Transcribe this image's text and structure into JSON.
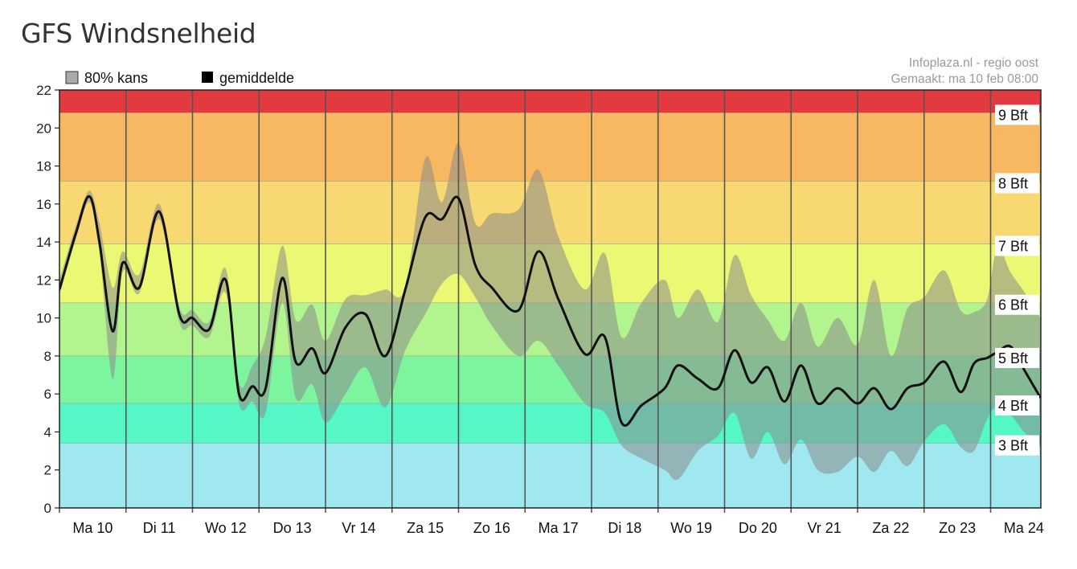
{
  "page": {
    "title": "GFS Windsnelheid",
    "source_line1": "Infoplaza.nl - regio oost",
    "source_line2": "Gemaakt: ma 10 feb 08:00"
  },
  "colors": {
    "band_red": "#e23a3e",
    "band_orange": "#f8b761",
    "band_yellow_orange": "#f8d871",
    "band_yellow": "#eaf873",
    "band_light_green": "#b2f58e",
    "band_green": "#7df59f",
    "band_teal": "#55f7c7",
    "band_cyan": "#9fe8f0",
    "range_fill": "#8a8a8a",
    "mean_line": "#111111",
    "grid": "#555555"
  },
  "chart_data": {
    "type": "area",
    "ylim": [
      0,
      22
    ],
    "yticks": [
      0,
      2,
      4,
      6,
      8,
      10,
      12,
      14,
      16,
      18,
      20,
      22
    ],
    "xlim": [
      0,
      14.75
    ],
    "day_labels": [
      "Ma 10",
      "Di 11",
      "Wo 12",
      "Do 13",
      "Vr 14",
      "Za 15",
      "Zo 16",
      "Ma 17",
      "Di 18",
      "Wo 19",
      "Do 20",
      "Vr 21",
      "Za 22",
      "Zo 23",
      "Ma 24"
    ],
    "legend": [
      {
        "name": "80% kans",
        "color": "#aaaaaa"
      },
      {
        "name": "gemiddelde",
        "color": "#000000"
      }
    ],
    "beaufort_bands": [
      {
        "from": 0,
        "to": 3.4,
        "label": "3 Bft",
        "color": "#9fe8f0"
      },
      {
        "from": 3.4,
        "to": 5.5,
        "label": "4 Bft",
        "color": "#55f7c7"
      },
      {
        "from": 5.5,
        "to": 8.0,
        "label": "5 Bft",
        "color": "#7df59f"
      },
      {
        "from": 8.0,
        "to": 10.8,
        "label": "6 Bft",
        "color": "#b2f58e"
      },
      {
        "from": 10.8,
        "to": 13.9,
        "label": "7 Bft",
        "color": "#eaf873"
      },
      {
        "from": 13.9,
        "to": 17.2,
        "label": "8 Bft",
        "color": "#f8d871"
      },
      {
        "from": 17.2,
        "to": 20.8,
        "label": "9 Bft",
        "color": "#f8b761"
      },
      {
        "from": 20.8,
        "to": 22,
        "label": "",
        "color": "#e23a3e"
      }
    ],
    "series": [
      {
        "name": "gemiddelde",
        "x": [
          0,
          0.25,
          0.45,
          0.6,
          0.8,
          0.95,
          1.2,
          1.5,
          1.8,
          2.0,
          2.25,
          2.5,
          2.7,
          2.9,
          3.1,
          3.35,
          3.55,
          3.8,
          4.0,
          4.3,
          4.6,
          4.9,
          5.2,
          5.5,
          5.75,
          6.0,
          6.25,
          6.5,
          6.9,
          7.2,
          7.5,
          7.9,
          8.2,
          8.45,
          8.75,
          9.1,
          9.3,
          9.6,
          9.9,
          10.15,
          10.4,
          10.65,
          10.9,
          11.15,
          11.4,
          11.7,
          12.0,
          12.25,
          12.5,
          12.75,
          13.0,
          13.3,
          13.55,
          13.75,
          13.95,
          14.1,
          14.3,
          14.5,
          14.75
        ],
        "y": [
          11.5,
          14.5,
          16.4,
          14.0,
          9.3,
          12.9,
          11.6,
          15.6,
          10.2,
          10.0,
          9.4,
          12.0,
          6.0,
          6.4,
          6.3,
          12.1,
          7.7,
          8.4,
          7.1,
          9.5,
          10.2,
          8.0,
          11.5,
          15.3,
          15.2,
          16.3,
          12.8,
          11.6,
          10.4,
          13.5,
          11.0,
          8.1,
          9.0,
          4.5,
          5.4,
          6.3,
          7.5,
          6.8,
          6.3,
          8.3,
          6.6,
          7.4,
          5.6,
          7.5,
          5.5,
          6.3,
          5.5,
          6.3,
          5.2,
          6.3,
          6.6,
          7.7,
          6.1,
          7.6,
          7.9,
          8.2,
          8.5,
          7.3,
          5.8
        ]
      },
      {
        "name": "80% kans",
        "x": [
          0,
          0.25,
          0.45,
          0.6,
          0.8,
          0.95,
          1.2,
          1.5,
          1.8,
          2.0,
          2.25,
          2.5,
          2.7,
          2.9,
          3.1,
          3.35,
          3.55,
          3.8,
          4.0,
          4.3,
          4.6,
          4.9,
          5.2,
          5.5,
          5.75,
          6.0,
          6.25,
          6.5,
          6.9,
          7.2,
          7.5,
          7.9,
          8.2,
          8.45,
          8.75,
          9.1,
          9.3,
          9.6,
          9.9,
          10.15,
          10.4,
          10.65,
          10.9,
          11.15,
          11.4,
          11.7,
          12.0,
          12.25,
          12.5,
          12.75,
          13.0,
          13.3,
          13.55,
          13.75,
          13.95,
          14.1,
          14.3,
          14.5,
          14.75
        ],
        "low": [
          11.2,
          14.2,
          16.1,
          13.5,
          6.8,
          12.4,
          11.3,
          15.2,
          9.8,
          9.6,
          9.0,
          11.3,
          5.5,
          5.6,
          5.0,
          10.8,
          5.8,
          6.5,
          4.5,
          6.0,
          7.4,
          5.3,
          8.3,
          10.2,
          11.8,
          12.3,
          11.1,
          9.6,
          8.0,
          8.8,
          7.5,
          5.5,
          5.0,
          3.3,
          2.6,
          2.0,
          1.5,
          3.0,
          3.8,
          5.0,
          2.6,
          4.0,
          2.3,
          3.6,
          2.0,
          1.9,
          2.7,
          1.9,
          3.0,
          2.2,
          3.5,
          4.4,
          3.2,
          3.0,
          4.7,
          5.3,
          4.9,
          4.0,
          3.2
        ],
        "high": [
          12.0,
          14.9,
          16.7,
          15.0,
          11.6,
          13.5,
          12.3,
          16.0,
          10.6,
          10.4,
          9.8,
          12.6,
          6.6,
          7.5,
          9.0,
          13.8,
          9.9,
          10.7,
          8.8,
          11.0,
          11.2,
          11.5,
          11.6,
          18.4,
          16.1,
          19.2,
          15.0,
          15.5,
          15.7,
          17.8,
          14.3,
          11.5,
          13.4,
          9.0,
          10.8,
          12.0,
          10.0,
          11.5,
          9.8,
          13.3,
          11.2,
          9.9,
          8.8,
          10.8,
          8.5,
          10.0,
          8.6,
          12.0,
          8.0,
          10.5,
          11.1,
          12.5,
          10.4,
          10.3,
          11.0,
          13.7,
          12.4,
          11.4,
          10.0
        ]
      }
    ]
  }
}
